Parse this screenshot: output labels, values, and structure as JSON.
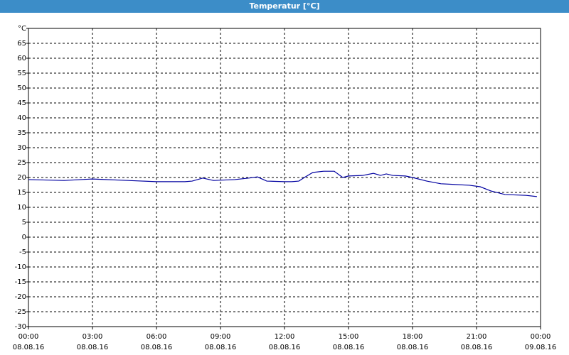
{
  "chart_data": {
    "type": "line",
    "title": "Temperatur [°C]",
    "xlim": [
      0,
      24
    ],
    "ylim": [
      -30,
      70
    ],
    "xticks": [
      {
        "value": 0,
        "label": [
          "00:00",
          "08.08.16"
        ]
      },
      {
        "value": 3,
        "label": [
          "03:00",
          "08.08.16"
        ]
      },
      {
        "value": 6,
        "label": [
          "06:00",
          "08.08.16"
        ]
      },
      {
        "value": 9,
        "label": [
          "09:00",
          "08.08.16"
        ]
      },
      {
        "value": 12,
        "label": [
          "12:00",
          "08.08.16"
        ]
      },
      {
        "value": 15,
        "label": [
          "15:00",
          "08.08.16"
        ]
      },
      {
        "value": 18,
        "label": [
          "18:00",
          "08.08.16"
        ]
      },
      {
        "value": 21,
        "label": [
          "21:00",
          "08.08.16"
        ]
      },
      {
        "value": 24,
        "label": [
          "00:00",
          "09.08.16"
        ]
      }
    ],
    "yticks": [
      -30,
      -25,
      -20,
      -15,
      -10,
      -5,
      0,
      5,
      10,
      15,
      20,
      25,
      30,
      35,
      40,
      45,
      50,
      55,
      60,
      65,
      {
        "value": 70,
        "label": "°C"
      }
    ],
    "grid": true,
    "series": [
      {
        "color": "#0000a0",
        "x": [
          0,
          1.67,
          3,
          4.67,
          6,
          7.33,
          7.67,
          8.17,
          8.67,
          9.67,
          10.33,
          10.73,
          11.17,
          12,
          12.33,
          12.67,
          12.93,
          13.33,
          13.83,
          14.33,
          14.73,
          15,
          15.67,
          16.17,
          16.5,
          16.77,
          17.07,
          17.67,
          18,
          18.67,
          19.33,
          20.67,
          21.17,
          21.67,
          22.33,
          23.33,
          23.83
        ],
        "values": [
          19.3,
          19.0,
          19.5,
          19.0,
          18.6,
          18.6,
          18.8,
          19.8,
          19.0,
          19.3,
          19.8,
          20.2,
          18.8,
          18.6,
          18.6,
          18.8,
          20.0,
          21.7,
          22.1,
          22.1,
          20.0,
          20.5,
          20.7,
          21.4,
          20.7,
          21.2,
          20.7,
          20.5,
          20.0,
          18.8,
          17.9,
          17.4,
          16.9,
          15.5,
          14.3,
          14.0,
          13.6
        ]
      }
    ]
  }
}
